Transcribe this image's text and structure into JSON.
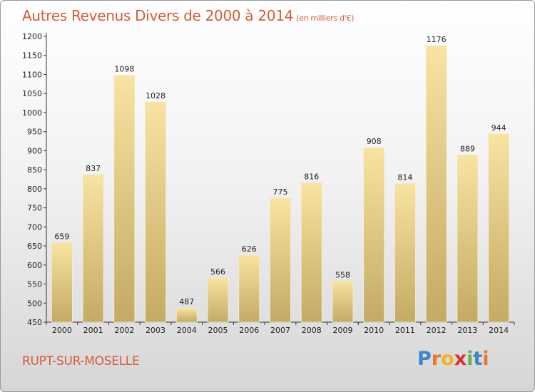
{
  "chart_data": {
    "type": "bar",
    "title": "Autres Revenus Divers de 2000 à 2014",
    "subtitle": "(en milliers d'€)",
    "categories": [
      "2000",
      "2001",
      "2002",
      "2003",
      "2004",
      "2005",
      "2006",
      "2007",
      "2008",
      "2009",
      "2010",
      "2011",
      "2012",
      "2013",
      "2014"
    ],
    "values": [
      659,
      837,
      1098,
      1028,
      487,
      566,
      626,
      775,
      816,
      558,
      908,
      814,
      1176,
      889,
      944
    ],
    "ylim": [
      450,
      1200
    ],
    "yticks": [
      450,
      500,
      550,
      600,
      650,
      700,
      750,
      800,
      850,
      900,
      950,
      1000,
      1050,
      1100,
      1150,
      1200
    ],
    "grid": false,
    "bar_color_top": "#f8e3a0",
    "bar_color_bottom": "#c4aa64"
  },
  "footer": {
    "city": "RUPT-SUR-MOSELLE",
    "logo_letters": [
      {
        "ch": "P",
        "color": "#3a86c8"
      },
      {
        "ch": "r",
        "color": "#e8762b"
      },
      {
        "ch": "o",
        "color": "#f0b322"
      },
      {
        "ch": "x",
        "color": "#d6342c"
      },
      {
        "ch": "i",
        "color": "#6bb33b"
      },
      {
        "ch": "t",
        "color": "#3a86c8"
      },
      {
        "ch": "i",
        "color": "#e8762b"
      }
    ]
  },
  "colors": {
    "title": "#d65a3a",
    "axis": "#333333"
  }
}
